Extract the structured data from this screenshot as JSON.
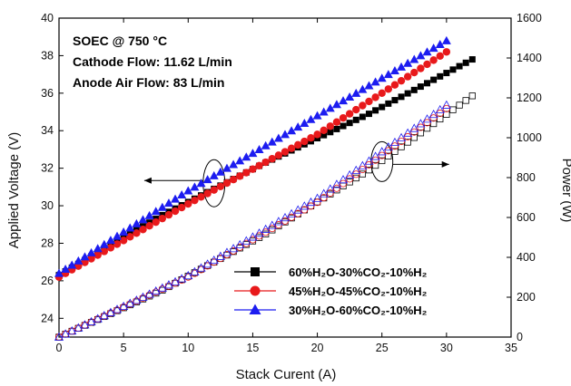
{
  "chart_data": {
    "type": "scatter",
    "xlabel": "Stack Curent (A)",
    "ylabel_left": "Applied Voltage (V)",
    "ylabel_right": "Power (W)",
    "xlim": [
      0,
      35
    ],
    "ylim_left": [
      23,
      40
    ],
    "ylim_right": [
      0,
      1600
    ],
    "x_ticks": [
      0,
      5,
      10,
      15,
      20,
      25,
      30,
      35
    ],
    "y_left_ticks": [
      24,
      26,
      28,
      30,
      32,
      34,
      36,
      38,
      40
    ],
    "y_right_ticks": [
      0,
      200,
      400,
      600,
      800,
      1000,
      1200,
      1400,
      1600
    ],
    "grid": false,
    "legend_position": "bottom-right",
    "annotations": [
      "SOEC @ 750 °C",
      "Cathode Flow: 11.62 L/min",
      "Anode Air Flow: 83 L/min"
    ],
    "series": [
      {
        "name": "60%H₂O-30%CO₂-10%H₂",
        "marker": "square",
        "color": "#000000",
        "x": [
          0,
          8,
          16,
          24,
          32
        ],
        "voltage": [
          26.3,
          29.5,
          32.3,
          34.9,
          37.8
        ],
        "power": [
          0,
          235,
          517,
          838,
          1210
        ]
      },
      {
        "name": "45%H₂O-45%CO₂-10%H₂",
        "marker": "circle",
        "color": "#e8191b",
        "x": [
          0,
          10,
          20,
          30
        ],
        "voltage": [
          26.2,
          30.1,
          33.8,
          38.2
        ],
        "power": [
          0,
          301,
          676,
          1146
        ]
      },
      {
        "name": "30%H₂O-60%CO₂-10%H₂",
        "marker": "triangle",
        "color": "#1c1cf0",
        "x": [
          0,
          10,
          20,
          30
        ],
        "voltage": [
          26.4,
          30.8,
          34.8,
          38.8
        ],
        "power": [
          0,
          308,
          696,
          1164
        ]
      }
    ]
  }
}
